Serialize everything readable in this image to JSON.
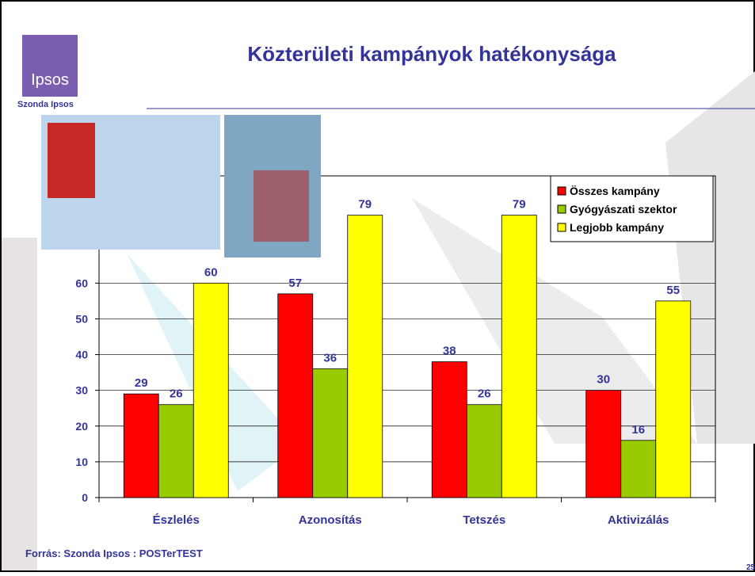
{
  "header": {
    "logo": "Ipsos",
    "brand": "Szonda Ipsos",
    "page_number": "25"
  },
  "footer": {
    "source": "Forrás: Szonda Ipsos : POSTerTEST"
  },
  "chart_data": {
    "type": "bar",
    "title": "Közterületi kampányok hatékonysága",
    "categories": [
      "Észlelés",
      "Azonosítás",
      "Tetszés",
      "Aktivizálás"
    ],
    "series": [
      {
        "name": "Összes kampány",
        "color": "#ff0000",
        "values": [
          29,
          57,
          38,
          30
        ]
      },
      {
        "name": "Gyógyászati szektor",
        "color": "#99cc00",
        "values": [
          26,
          36,
          26,
          16
        ]
      },
      {
        "name": "Legjobb kampány",
        "color": "#ffff00",
        "values": [
          60,
          79,
          79,
          55
        ]
      }
    ],
    "ylim": [
      0,
      90
    ],
    "yticks": [
      0,
      10,
      20,
      30,
      40,
      50,
      60
    ],
    "grid": true,
    "legend": "top-right"
  }
}
